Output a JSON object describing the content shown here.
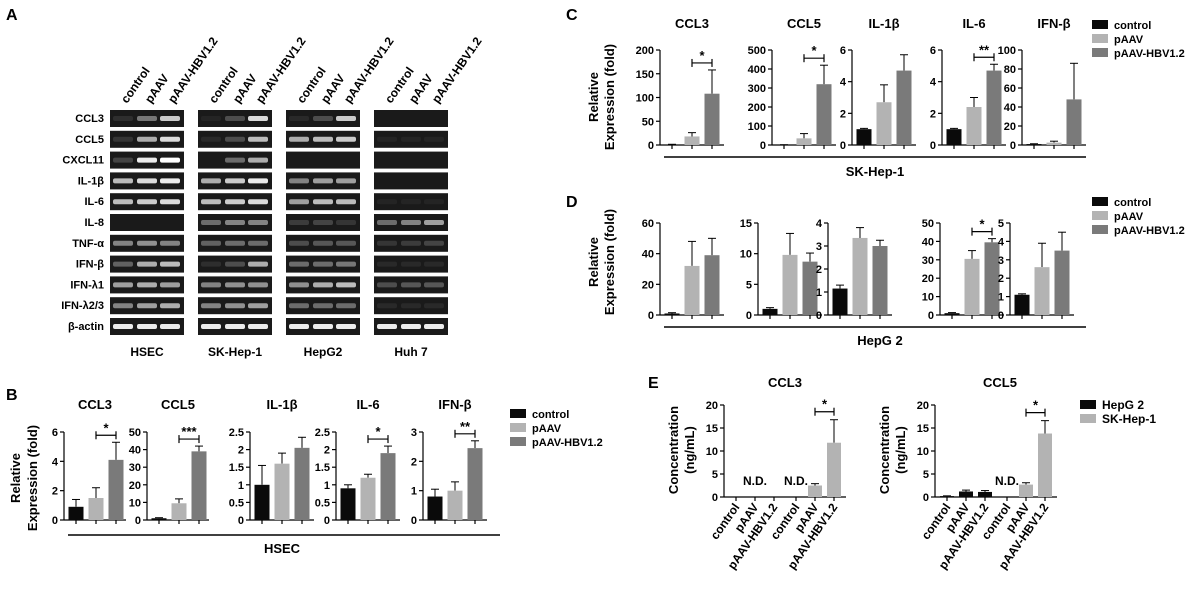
{
  "colors": {
    "control": "#0a0a0a",
    "pAAV": "#b3b3b3",
    "pAAV-HBV1.2": "#7a7a7a",
    "HepG 2": "#0a0a0a",
    "SK-Hep-1": "#b3b3b3"
  },
  "chart_data": [
    {
      "panel": "A",
      "type": "gel",
      "lane_labels": [
        "control",
        "pAAV",
        "pAAV-HBV1.2"
      ],
      "genes": [
        "CCL3",
        "CCL5",
        "CXCL11",
        "IL-1β",
        "IL-6",
        "IL-8",
        "TNF-α",
        "IFN-β",
        "IFN-λ1",
        "IFN-λ2/3",
        "β-actin"
      ],
      "cell_lines": [
        "HSEC",
        "SK-Hep-1",
        "HepG2",
        "Huh 7"
      ],
      "band_intensity": [
        [
          [
            0.15,
            0.55,
            0.85
          ],
          [
            0.05,
            0.35,
            0.9
          ],
          [
            0.1,
            0.35,
            0.85
          ],
          [
            0,
            0,
            0
          ]
        ],
        [
          [
            0.2,
            0.75,
            0.9
          ],
          [
            0.1,
            0.35,
            0.8
          ],
          [
            0.75,
            0.8,
            0.85
          ],
          [
            0.05,
            0.05,
            0.05
          ]
        ],
        [
          [
            0.3,
            0.95,
            1
          ],
          [
            0,
            0.5,
            0.75
          ],
          [
            0,
            0,
            0
          ],
          [
            0,
            0,
            0
          ]
        ],
        [
          [
            0.8,
            0.9,
            0.95
          ],
          [
            0.75,
            0.85,
            0.95
          ],
          [
            0.6,
            0.7,
            0.7
          ],
          [
            0,
            0,
            0
          ]
        ],
        [
          [
            0.8,
            0.85,
            0.9
          ],
          [
            0.8,
            0.85,
            0.9
          ],
          [
            0.7,
            0.8,
            0.8
          ],
          [
            0.05,
            0.05,
            0.05
          ]
        ],
        [
          [
            0,
            0,
            0
          ],
          [
            0.5,
            0.6,
            0.6
          ],
          [
            0.25,
            0.3,
            0.2
          ],
          [
            0.5,
            0.6,
            0.7
          ]
        ],
        [
          [
            0.6,
            0.65,
            0.6
          ],
          [
            0.45,
            0.5,
            0.5
          ],
          [
            0.35,
            0.4,
            0.4
          ],
          [
            0.2,
            0.25,
            0.3
          ]
        ],
        [
          [
            0.45,
            0.75,
            0.8
          ],
          [
            0.15,
            0.35,
            0.75
          ],
          [
            0.5,
            0.5,
            0.55
          ],
          [
            0.1,
            0.1,
            0.1
          ]
        ],
        [
          [
            0.7,
            0.75,
            0.7
          ],
          [
            0.6,
            0.65,
            0.65
          ],
          [
            0.65,
            0.75,
            0.8
          ],
          [
            0.35,
            0.4,
            0.4
          ]
        ],
        [
          [
            0.6,
            0.7,
            0.75
          ],
          [
            0.6,
            0.65,
            0.7
          ],
          [
            0.5,
            0.5,
            0.5
          ],
          [
            0.1,
            0.1,
            0.1
          ]
        ],
        [
          [
            0.95,
            0.95,
            0.95
          ],
          [
            0.95,
            0.95,
            0.95
          ],
          [
            0.95,
            0.95,
            0.95
          ],
          [
            0.95,
            0.95,
            0.95
          ]
        ]
      ]
    },
    {
      "panel": "B",
      "type": "bar",
      "ylabel": "Relative\nExpression (fold)",
      "xlabel": "HSEC",
      "series_names": [
        "control",
        "pAAV",
        "pAAV-HBV1.2"
      ],
      "legend": "right",
      "subplots": [
        {
          "title": "CCL3",
          "ylim": [
            0,
            6
          ],
          "yticks": [
            0,
            2,
            4,
            6
          ],
          "values": [
            0.9,
            1.5,
            4.1
          ],
          "errors": [
            0.5,
            0.7,
            1.2
          ],
          "sig": [
            {
              "from": 1,
              "to": 2,
              "label": "*"
            }
          ]
        },
        {
          "title": "CCL5",
          "ylim": [
            0,
            50
          ],
          "yticks": [
            0,
            10,
            20,
            30,
            40,
            50
          ],
          "values": [
            1,
            9.5,
            39
          ],
          "errors": [
            0.3,
            2.5,
            3
          ],
          "sig": [
            {
              "from": 1,
              "to": 2,
              "label": "***"
            }
          ]
        },
        {
          "title": "IL-1β",
          "ylim": [
            0,
            2.5
          ],
          "yticks": [
            0,
            0.5,
            1,
            1.5,
            2,
            2.5
          ],
          "values": [
            1,
            1.6,
            2.05
          ],
          "errors": [
            0.55,
            0.3,
            0.3
          ],
          "sig": []
        },
        {
          "title": "IL-6",
          "ylim": [
            0,
            2.5
          ],
          "yticks": [
            0,
            0.5,
            1,
            1.5,
            2,
            2.5
          ],
          "values": [
            0.9,
            1.2,
            1.9
          ],
          "errors": [
            0.1,
            0.1,
            0.2
          ],
          "sig": [
            {
              "from": 1,
              "to": 2,
              "label": "*"
            }
          ]
        },
        {
          "title": "IFN-β",
          "ylim": [
            0,
            3
          ],
          "yticks": [
            0,
            1,
            2,
            3
          ],
          "values": [
            0.8,
            1.0,
            2.45
          ],
          "errors": [
            0.25,
            0.3,
            0.25
          ],
          "sig": [
            {
              "from": 1,
              "to": 2,
              "label": "**"
            }
          ]
        }
      ]
    },
    {
      "panel": "C",
      "type": "bar",
      "ylabel": "Relative\nExpression (fold)",
      "xlabel": "SK-Hep-1",
      "series_names": [
        "control",
        "pAAV",
        "pAAV-HBV1.2"
      ],
      "legend": "top-right",
      "subplots": [
        {
          "title": "CCL3",
          "ylim": [
            0,
            200
          ],
          "yticks": [
            0,
            50,
            100,
            150,
            200
          ],
          "values": [
            1,
            18,
            108
          ],
          "errors": [
            0.5,
            8,
            50
          ],
          "sig": [
            {
              "from": 1,
              "to": 2,
              "label": "*"
            }
          ]
        },
        {
          "title": "CCL5",
          "ylim": [
            0,
            500
          ],
          "yticks": [
            0,
            100,
            200,
            300,
            400,
            500
          ],
          "values": [
            1,
            35,
            320
          ],
          "errors": [
            0.5,
            25,
            100
          ],
          "sig": [
            {
              "from": 1,
              "to": 2,
              "label": "*"
            }
          ]
        },
        {
          "title": "IL-1β",
          "ylim": [
            0,
            6
          ],
          "yticks": [
            0,
            2,
            4,
            6
          ],
          "values": [
            1,
            2.7,
            4.7
          ],
          "errors": [
            0.05,
            1.1,
            1.0
          ],
          "sig": []
        },
        {
          "title": "IL-6",
          "ylim": [
            0,
            6
          ],
          "yticks": [
            0,
            2,
            4,
            6
          ],
          "values": [
            1,
            2.4,
            4.7
          ],
          "errors": [
            0.05,
            0.6,
            0.4
          ],
          "sig": [
            {
              "from": 1,
              "to": 2,
              "label": "**"
            }
          ]
        },
        {
          "title": "IFN-β",
          "ylim": [
            0,
            100
          ],
          "yticks": [
            0,
            20,
            40,
            60,
            80,
            100
          ],
          "values": [
            1,
            2.5,
            48
          ],
          "errors": [
            0.3,
            1.5,
            38
          ],
          "sig": []
        }
      ]
    },
    {
      "panel": "D",
      "type": "bar",
      "ylabel": "Relative\nExpression (fold)",
      "xlabel": "HepG 2",
      "series_names": [
        "control",
        "pAAV",
        "pAAV-HBV1.2"
      ],
      "legend": "top-right",
      "subplots": [
        {
          "title": "",
          "ylim": [
            0,
            60
          ],
          "yticks": [
            0,
            20,
            40,
            60
          ],
          "values": [
            1,
            32,
            39
          ],
          "errors": [
            0.5,
            16,
            11
          ],
          "sig": []
        },
        {
          "title": "",
          "ylim": [
            0,
            15
          ],
          "yticks": [
            0,
            5,
            10,
            15
          ],
          "values": [
            1,
            9.8,
            8.7
          ],
          "errors": [
            0.2,
            3.5,
            1.4
          ],
          "sig": []
        },
        {
          "title": "",
          "ylim": [
            0,
            4
          ],
          "yticks": [
            0,
            1,
            2,
            3,
            4
          ],
          "values": [
            1.15,
            3.35,
            3.0
          ],
          "errors": [
            0.15,
            0.45,
            0.25
          ],
          "sig": []
        },
        {
          "title": "",
          "ylim": [
            0,
            50
          ],
          "yticks": [
            0,
            10,
            20,
            30,
            40,
            50
          ],
          "values": [
            1,
            30.5,
            39.5
          ],
          "errors": [
            0.3,
            4.5,
            2
          ],
          "sig": [
            {
              "from": 1,
              "to": 2,
              "label": "*"
            }
          ]
        },
        {
          "title": "",
          "ylim": [
            0,
            5
          ],
          "yticks": [
            0,
            1,
            2,
            3,
            4,
            5
          ],
          "values": [
            1.1,
            2.6,
            3.5
          ],
          "errors": [
            0.05,
            1.3,
            1.0
          ],
          "sig": []
        }
      ]
    },
    {
      "panel": "E",
      "type": "bar",
      "ylabel": "Concentration\n(ng/mL)",
      "series_names": [
        "HepG 2",
        "SK-Hep-1"
      ],
      "categories": [
        "control",
        "pAAV",
        "pAAV-HBV1.2"
      ],
      "legend": "right",
      "subplots": [
        {
          "title": "CCL3",
          "ylim": [
            0,
            20
          ],
          "yticks": [
            0,
            5,
            10,
            15,
            20
          ],
          "groups": [
            {
              "series": "HepG 2",
              "values": [
                null,
                null,
                null
              ],
              "note": "N.D."
            },
            {
              "series": "SK-Hep-1",
              "values": [
                null,
                2.5,
                11.8
              ],
              "errors": [
                0,
                0.4,
                5
              ],
              "note": "N.D."
            }
          ],
          "sig": [
            {
              "from": 1,
              "to": 2,
              "label": "*"
            }
          ]
        },
        {
          "title": "CCL5",
          "ylim": [
            0,
            20
          ],
          "yticks": [
            0,
            5,
            10,
            15,
            20
          ],
          "groups": [
            {
              "series": "HepG 2",
              "values": [
                0.2,
                1.2,
                1.1
              ],
              "errors": [
                0.05,
                0.3,
                0.3
              ]
            },
            {
              "series": "SK-Hep-1",
              "values": [
                null,
                2.7,
                13.8
              ],
              "errors": [
                0,
                0.4,
                2.8
              ],
              "note": "N.D."
            }
          ],
          "sig": [
            {
              "from": 1,
              "to": 2,
              "label": "*"
            }
          ]
        }
      ]
    }
  ]
}
